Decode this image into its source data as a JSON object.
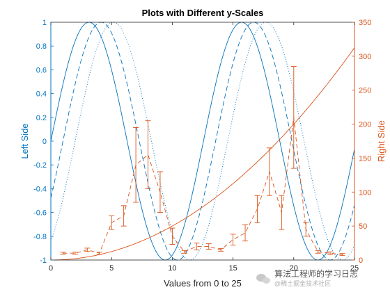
{
  "chart_data": {
    "type": "line",
    "title": "Plots with Different y-Scales",
    "xlabel": "Values from 0 to 25",
    "ylabel_left": "Left Side",
    "ylabel_right": "Right Side",
    "xlim": [
      0,
      25
    ],
    "ylim_left": [
      -1,
      1
    ],
    "ylim_right": [
      0,
      350
    ],
    "x_ticks": [
      0,
      5,
      10,
      15,
      20,
      25
    ],
    "y_left_ticks": [
      -1,
      -0.8,
      -0.6,
      -0.4,
      -0.2,
      0,
      0.2,
      0.4,
      0.6,
      0.8,
      1
    ],
    "y_right_ticks": [
      0,
      50,
      100,
      150,
      200,
      250,
      300,
      350
    ],
    "grid": false,
    "left_color": "#0072BD",
    "right_color": "#D95319",
    "left_series": [
      {
        "style": "solid",
        "function": "sin(x/2)"
      },
      {
        "style": "dashed",
        "function": "sin(x/2 - 0.5)"
      },
      {
        "style": "dotted",
        "function": "sin(x/2 - 1)"
      }
    ],
    "right_series": [
      {
        "style": "solid",
        "function": "x^2/2"
      },
      {
        "style": "dashed-errorbar",
        "x": [
          1,
          2,
          3,
          4,
          5,
          6,
          7,
          8,
          9,
          10,
          11,
          12,
          13,
          14,
          15,
          16,
          17,
          18,
          19,
          20,
          21,
          22,
          23,
          24
        ],
        "y": [
          10,
          10,
          15,
          10,
          55,
          65,
          140,
          155,
          100,
          35,
          12,
          20,
          20,
          15,
          30,
          40,
          75,
          130,
          70,
          210,
          45,
          12,
          10,
          8
        ],
        "err": [
          1.5,
          1.5,
          2.5,
          1.5,
          10,
          15,
          55,
          50,
          30,
          12,
          2,
          5,
          4,
          2,
          8,
          12,
          20,
          35,
          25,
          75,
          10,
          2,
          2,
          1.5
        ]
      }
    ]
  },
  "watermark": {
    "text": "算法工程师的学习日志",
    "subtext": "@稀土掘金技术社区"
  }
}
